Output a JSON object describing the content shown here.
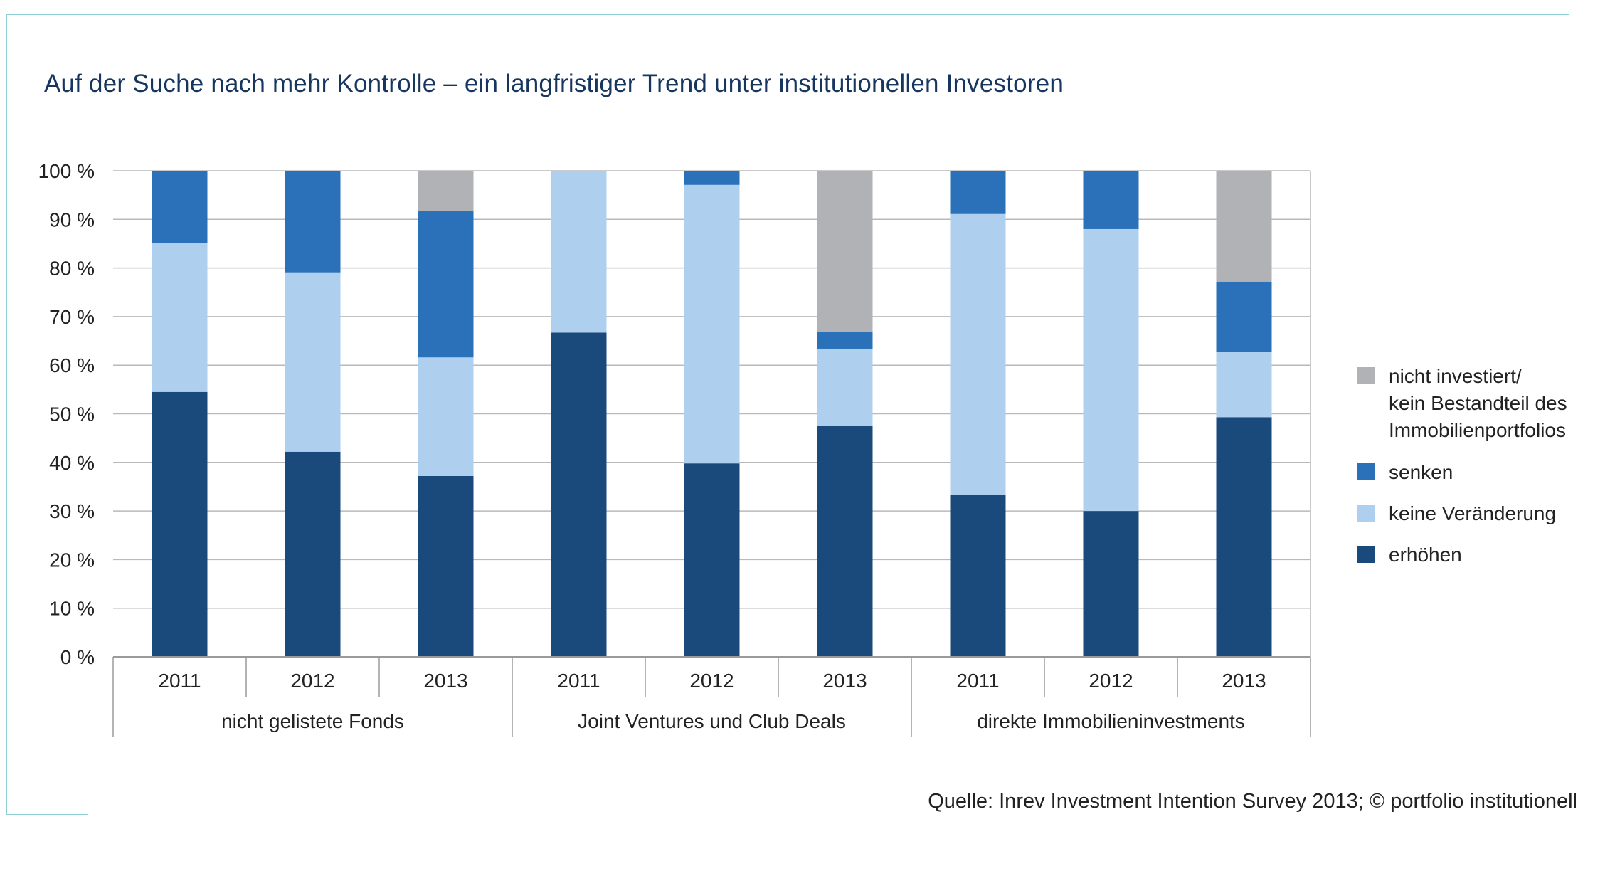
{
  "title": "Auf der Suche nach mehr Kontrolle – ein langfristiger Trend unter institutionellen Investoren",
  "source": "Quelle: Inrev Investment Intention Survey 2013; © portfolio institutionell",
  "chart_data": {
    "type": "bar",
    "stacked": true,
    "y_ticks": [
      "0 %",
      "10 %",
      "20 %",
      "30 %",
      "40 %",
      "50 %",
      "60 %",
      "70 %",
      "80 %",
      "90 %",
      "100 %"
    ],
    "ylim": [
      0,
      100
    ],
    "grid": true,
    "legend_position": "right",
    "groups": [
      {
        "name": "nicht gelistete Fonds",
        "categories": [
          "2011",
          "2012",
          "2013"
        ]
      },
      {
        "name": "Joint Ventures und Club Deals",
        "categories": [
          "2011",
          "2012",
          "2013"
        ]
      },
      {
        "name": "direkte Immobilieninvestments",
        "categories": [
          "2011",
          "2012",
          "2013"
        ]
      }
    ],
    "series": [
      {
        "name": "erhöhen",
        "color": "#1a4a7c",
        "values": [
          54.5,
          42.2,
          37.2,
          66.7,
          39.8,
          47.5,
          33.3,
          30.0,
          49.3
        ]
      },
      {
        "name": "keine Veränderung",
        "color": "#aecfee",
        "values": [
          30.7,
          36.9,
          24.4,
          33.3,
          57.3,
          15.9,
          57.8,
          58.0,
          13.5
        ]
      },
      {
        "name": "senken",
        "color": "#2a71ba",
        "values": [
          14.8,
          20.9,
          30.1,
          0,
          2.9,
          3.4,
          8.9,
          12.0,
          14.4
        ]
      },
      {
        "name": "nicht investiert/ kein Bestandteil des Immobilienportfolios",
        "color": "#b1b2b6",
        "values": [
          0,
          0,
          8.3,
          0,
          0,
          33.2,
          0,
          0,
          22.8
        ]
      }
    ],
    "legend": [
      {
        "series": 3,
        "lines": [
          "nicht investiert/",
          "kein Bestandteil des",
          "Immobilienportfolios"
        ]
      },
      {
        "series": 2,
        "lines": [
          "senken"
        ]
      },
      {
        "series": 1,
        "lines": [
          "keine Veränderung"
        ]
      },
      {
        "series": 0,
        "lines": [
          "erhöhen"
        ]
      }
    ]
  }
}
